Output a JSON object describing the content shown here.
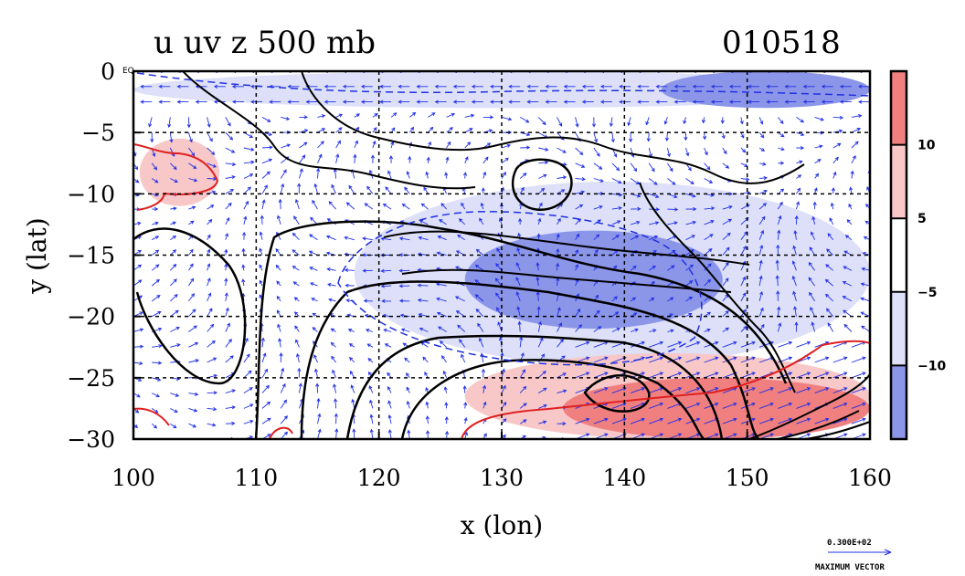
{
  "chart_data": {
    "type": "heatmap",
    "title": "u uv z 500 mb",
    "date_label": "010518",
    "xlabel": "x (lon)",
    "ylabel": "y (lat)",
    "xlim": [
      100,
      160
    ],
    "ylim": [
      -30,
      0
    ],
    "x_ticks": [
      "100",
      "110",
      "120",
      "130",
      "140",
      "150",
      "160"
    ],
    "y_ticks": [
      "0",
      "−5",
      "−10",
      "−15",
      "−20",
      "−25",
      "−30"
    ],
    "y_tick_values": [
      0,
      -5,
      -10,
      -15,
      -20,
      -25,
      -30
    ],
    "x_tick_values": [
      100,
      110,
      120,
      130,
      140,
      150,
      160
    ],
    "corner_label": "EQ",
    "grid": true,
    "colorbar": {
      "ticks": [
        "10",
        "5",
        "−5",
        "−10"
      ],
      "tick_values": [
        10,
        5,
        -5,
        -10
      ],
      "bins": [
        {
          "range": ">10",
          "color": "#f08080"
        },
        {
          "range": "5 to 10",
          "color": "#f8c8c8"
        },
        {
          "range": "-5 to 5",
          "color": "#ffffff"
        },
        {
          "range": "-10 to -5",
          "color": "#dde0f8"
        },
        {
          "range": "<-10",
          "color": "#8c96e8"
        }
      ]
    },
    "vector_legend": {
      "value": "0.300E+02",
      "label": "MAXIMUM VECTOR"
    },
    "shaded_regions": [
      {
        "level": "5 to 10",
        "lon": [
          100.5,
          107
        ],
        "lat": [
          -11,
          -5.5
        ]
      },
      {
        "level": "-10 to -5",
        "lon": [
          118,
          160
        ],
        "lat": [
          -24,
          -9
        ]
      },
      {
        "level": "<-10",
        "lon": [
          127,
          148
        ],
        "lat": [
          -21,
          -13
        ]
      },
      {
        "level": "-10 to -5",
        "lon": [
          100,
          160
        ],
        "lat": [
          -3,
          0
        ]
      },
      {
        "level": "<-10",
        "lon": [
          143,
          160
        ],
        "lat": [
          -3,
          0
        ]
      },
      {
        "level": "5 to 10",
        "lon": [
          127,
          160
        ],
        "lat": [
          -30,
          -23
        ]
      },
      {
        "level": ">10",
        "lon": [
          135,
          160
        ],
        "lat": [
          -30,
          -25
        ]
      }
    ]
  },
  "colors": {
    "vector": "#1f2ee6",
    "contour": "#000000",
    "positive_contour": "#e02020",
    "negative_contour": "#2030e0",
    "grid": "#000000"
  }
}
